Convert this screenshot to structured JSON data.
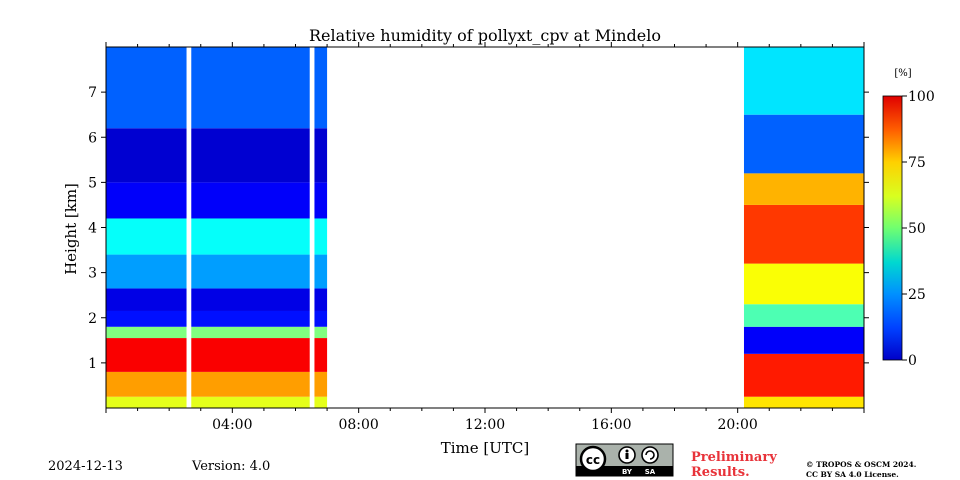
{
  "chart_data": {
    "type": "heatmap",
    "title": "Relative humidity of pollyxt_cpv at Mindelo",
    "xlabel": "Time [UTC]",
    "ylabel": "Height [km]",
    "x_unit": "hours UTC",
    "xlim": [
      0,
      24
    ],
    "ylim": [
      0,
      8
    ],
    "x_ticks": [
      {
        "value": 4,
        "label": "04:00"
      },
      {
        "value": 8,
        "label": "08:00"
      },
      {
        "value": 12,
        "label": "12:00"
      },
      {
        "value": 16,
        "label": "16:00"
      },
      {
        "value": 20,
        "label": "20:00"
      }
    ],
    "y_ticks": [
      {
        "value": 1,
        "label": "1"
      },
      {
        "value": 2,
        "label": "2"
      },
      {
        "value": 3,
        "label": "3"
      },
      {
        "value": 4,
        "label": "4"
      },
      {
        "value": 5,
        "label": "5"
      },
      {
        "value": 6,
        "label": "6"
      },
      {
        "value": 7,
        "label": "7"
      }
    ],
    "colorbar": {
      "unit": "[%]",
      "min": 0,
      "max": 100,
      "colormap": "jet",
      "ticks": [
        {
          "value": 0,
          "label": "0"
        },
        {
          "value": 25,
          "label": "25"
        },
        {
          "value": 50,
          "label": "50"
        },
        {
          "value": 75,
          "label": "75"
        },
        {
          "value": 100,
          "label": "100"
        }
      ]
    },
    "data_periods": [
      {
        "start": 0.0,
        "end": 7.0
      },
      {
        "start": 20.2,
        "end": 24.0
      }
    ],
    "data_gaps": [
      {
        "start": 2.55,
        "end": 2.7
      },
      {
        "start": 6.45,
        "end": 6.6
      }
    ],
    "layers": [
      {
        "t_start": 0.0,
        "t_end": 7.0,
        "h_bottom": 0.0,
        "h_top": 0.25,
        "rh": 60
      },
      {
        "t_start": 0.0,
        "t_end": 7.0,
        "h_bottom": 0.25,
        "h_top": 0.8,
        "rh": 72
      },
      {
        "t_start": 0.0,
        "t_end": 7.0,
        "h_bottom": 0.8,
        "h_top": 1.55,
        "rh": 88
      },
      {
        "t_start": 0.0,
        "t_end": 7.0,
        "h_bottom": 1.55,
        "h_top": 1.8,
        "rh": 50
      },
      {
        "t_start": 0.0,
        "t_end": 7.0,
        "h_bottom": 1.8,
        "h_top": 2.15,
        "rh": 14
      },
      {
        "t_start": 0.0,
        "t_end": 7.0,
        "h_bottom": 2.15,
        "h_top": 2.65,
        "rh": 10
      },
      {
        "t_start": 0.0,
        "t_end": 7.0,
        "h_bottom": 2.65,
        "h_top": 3.4,
        "rh": 28
      },
      {
        "t_start": 0.0,
        "t_end": 7.0,
        "h_bottom": 3.4,
        "h_top": 4.2,
        "rh": 38
      },
      {
        "t_start": 0.0,
        "t_end": 7.0,
        "h_bottom": 4.2,
        "h_top": 5.0,
        "rh": 12
      },
      {
        "t_start": 0.0,
        "t_end": 7.0,
        "h_bottom": 5.0,
        "h_top": 6.2,
        "rh": 8
      },
      {
        "t_start": 0.0,
        "t_end": 7.0,
        "h_bottom": 6.2,
        "h_top": 8.0,
        "rh": 22
      },
      {
        "t_start": 20.2,
        "t_end": 24.0,
        "h_bottom": 0.0,
        "h_top": 0.25,
        "rh": 65
      },
      {
        "t_start": 20.2,
        "t_end": 24.0,
        "h_bottom": 0.25,
        "h_top": 1.2,
        "rh": 85
      },
      {
        "t_start": 20.2,
        "t_end": 24.0,
        "h_bottom": 1.2,
        "h_top": 1.8,
        "rh": 12
      },
      {
        "t_start": 20.2,
        "t_end": 24.0,
        "h_bottom": 1.8,
        "h_top": 2.3,
        "rh": 45
      },
      {
        "t_start": 20.2,
        "t_end": 24.0,
        "h_bottom": 2.3,
        "h_top": 3.2,
        "rh": 62
      },
      {
        "t_start": 20.2,
        "t_end": 24.0,
        "h_bottom": 3.2,
        "h_top": 4.5,
        "rh": 82
      },
      {
        "t_start": 20.2,
        "t_end": 24.0,
        "h_bottom": 4.5,
        "h_top": 5.2,
        "rh": 70
      },
      {
        "t_start": 20.2,
        "t_end": 24.0,
        "h_bottom": 5.2,
        "h_top": 6.5,
        "rh": 22
      },
      {
        "t_start": 20.2,
        "t_end": 24.0,
        "h_bottom": 6.5,
        "h_top": 8.0,
        "rh": 35
      }
    ]
  },
  "footer": {
    "date": "2024-12-13",
    "version": "Version: 4.0",
    "license_badge": {
      "cc": "cc",
      "by": "BY",
      "sa": "SA"
    },
    "preliminary": "Preliminary\nResults.",
    "preliminary_line1": "Preliminary",
    "preliminary_line2": "Results.",
    "copyright_line1": "© TROPOS & OSCM 2024.",
    "copyright_line2": "CC BY SA 4.0 License.",
    "preliminary_color": "#e8333a"
  }
}
